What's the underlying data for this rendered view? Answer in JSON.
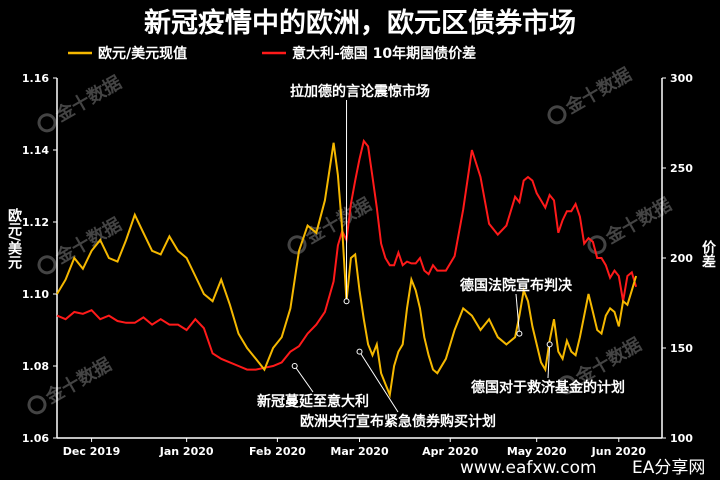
{
  "chart_data": {
    "type": "line",
    "title": "新冠疫情中的欧洲，欧元区债券市场",
    "xlabel": "",
    "ylabel_left": "欧元/美元",
    "ylabel_right": "价差",
    "x_ticks": [
      "Dec 2019",
      "Jan 2020",
      "Feb 2020",
      "Mar 2020",
      "Apr 2020",
      "May 2020",
      "Jun 2020"
    ],
    "x_range": [
      0,
      140
    ],
    "x_tick_positions": [
      8,
      30,
      51,
      70,
      91,
      111,
      130
    ],
    "y_left": {
      "lim": [
        1.06,
        1.16
      ],
      "ticks": [
        "1.06",
        "1.08",
        "1.10",
        "1.12",
        "1.14",
        "1.16"
      ]
    },
    "y_right": {
      "lim": [
        100,
        300
      ],
      "ticks": [
        "100",
        "150",
        "200",
        "250",
        "300"
      ]
    },
    "grid": false,
    "legend_position": "top",
    "series": [
      {
        "name": "欧元/美元现值",
        "axis": "left",
        "color": "#f5b800",
        "x": [
          0,
          2,
          4,
          6,
          8,
          10,
          12,
          14,
          16,
          18,
          20,
          22,
          24,
          26,
          28,
          30,
          32,
          34,
          36,
          38,
          40,
          42,
          44,
          46,
          48,
          50,
          52,
          54,
          56,
          58,
          60,
          62,
          64,
          65,
          66,
          67,
          68,
          69,
          70,
          71,
          72,
          73,
          74,
          75,
          76,
          77,
          78,
          79,
          80,
          81,
          82,
          83,
          84,
          85,
          86,
          87,
          88,
          90,
          92,
          94,
          96,
          98,
          100,
          102,
          104,
          106,
          107,
          108,
          109,
          110,
          111,
          112,
          113,
          114,
          115,
          116,
          117,
          118,
          119,
          120,
          121,
          122,
          123,
          124,
          125,
          126,
          127,
          128,
          129,
          130,
          131,
          132,
          133,
          134
        ],
        "y": [
          1.1,
          1.104,
          1.11,
          1.107,
          1.112,
          1.115,
          1.11,
          1.109,
          1.115,
          1.122,
          1.117,
          1.112,
          1.111,
          1.116,
          1.112,
          1.11,
          1.105,
          1.1,
          1.098,
          1.104,
          1.097,
          1.089,
          1.085,
          1.082,
          1.079,
          1.085,
          1.088,
          1.096,
          1.112,
          1.119,
          1.117,
          1.126,
          1.142,
          1.133,
          1.118,
          1.098,
          1.11,
          1.111,
          1.101,
          1.093,
          1.086,
          1.083,
          1.086,
          1.078,
          1.075,
          1.072,
          1.08,
          1.084,
          1.086,
          1.096,
          1.104,
          1.101,
          1.096,
          1.088,
          1.083,
          1.079,
          1.078,
          1.082,
          1.09,
          1.096,
          1.094,
          1.09,
          1.093,
          1.088,
          1.086,
          1.088,
          1.094,
          1.101,
          1.098,
          1.091,
          1.086,
          1.081,
          1.079,
          1.087,
          1.093,
          1.084,
          1.082,
          1.087,
          1.084,
          1.083,
          1.088,
          1.094,
          1.1,
          1.095,
          1.09,
          1.089,
          1.094,
          1.096,
          1.095,
          1.091,
          1.098,
          1.097,
          1.101,
          1.105
        ]
      },
      {
        "name": "意大利-德国 10年期国债价差",
        "axis": "right",
        "color": "#ff1a1a",
        "x": [
          0,
          2,
          4,
          6,
          8,
          10,
          12,
          14,
          16,
          18,
          20,
          22,
          24,
          26,
          28,
          30,
          32,
          34,
          36,
          38,
          40,
          42,
          44,
          46,
          48,
          50,
          52,
          54,
          56,
          58,
          60,
          62,
          64,
          65,
          66,
          67,
          68,
          69,
          70,
          71,
          72,
          73,
          74,
          75,
          76,
          77,
          78,
          79,
          80,
          81,
          82,
          83,
          84,
          85,
          86,
          87,
          88,
          90,
          92,
          94,
          96,
          98,
          100,
          102,
          104,
          106,
          107,
          108,
          109,
          110,
          111,
          112,
          113,
          114,
          115,
          116,
          117,
          118,
          119,
          120,
          121,
          122,
          123,
          124,
          125,
          126,
          127,
          128,
          129,
          130,
          131,
          132,
          133,
          134
        ],
        "y": [
          168,
          166,
          170,
          169,
          171,
          166,
          168,
          165,
          164,
          164,
          167,
          163,
          166,
          163,
          163,
          160,
          166,
          161,
          147,
          144,
          142,
          140,
          138,
          138,
          139,
          140,
          142,
          148,
          151,
          158,
          163,
          170,
          187,
          207,
          215,
          210,
          230,
          243,
          255,
          265,
          262,
          245,
          228,
          208,
          200,
          196,
          196,
          203,
          196,
          198,
          197,
          197,
          200,
          193,
          191,
          196,
          193,
          193,
          201,
          227,
          260,
          245,
          219,
          213,
          218,
          234,
          231,
          243,
          245,
          243,
          236,
          232,
          228,
          235,
          232,
          214,
          221,
          226,
          226,
          230,
          223,
          208,
          211,
          209,
          200,
          200,
          196,
          189,
          193,
          190,
          176,
          190,
          192,
          184
        ]
      }
    ],
    "annotations": [
      {
        "text": "拉加德的言论震惊市场",
        "x": 67,
        "y": 1.098
      },
      {
        "text": "新冠蔓延至意大利",
        "x": 55,
        "y": 1.08
      },
      {
        "text": "欧洲央行宣布紧急债券购买计划",
        "x": 70,
        "y": 1.084
      },
      {
        "text": "德国法院宣布判决",
        "x": 107,
        "y": 1.089
      },
      {
        "text": "德国对于救济基金的计划",
        "x": 114,
        "y": 1.086
      }
    ]
  },
  "watermark": "金十数据",
  "footer": {
    "site": "www.eafxw.com",
    "brand": "EA分享网"
  }
}
